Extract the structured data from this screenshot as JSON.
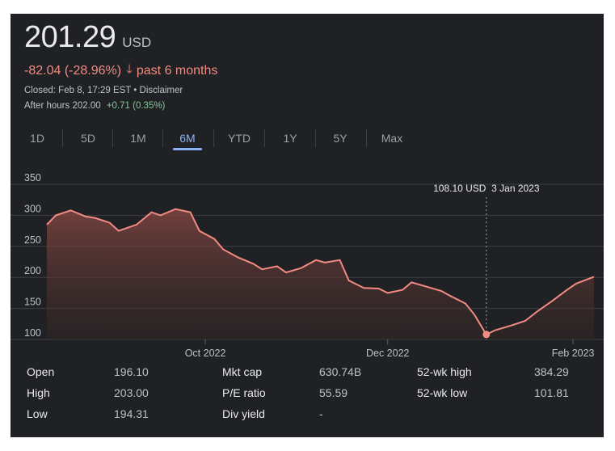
{
  "header": {
    "price": "201.29",
    "currency": "USD",
    "change": "-82.04 (-28.96%)",
    "change_period": "past 6 months",
    "closed_text": "Closed: Feb 8, 17:29 EST • Disclaimer",
    "after_hours_label": "After hours 202.00",
    "after_hours_change": "+0.71 (0.35%)"
  },
  "tabs": [
    "1D",
    "5D",
    "1M",
    "6M",
    "YTD",
    "1Y",
    "5Y",
    "Max"
  ],
  "active_tab": "6M",
  "tooltip": "108.10 USD  3 Jan 2023",
  "chart_data": {
    "type": "area",
    "title": "",
    "xlabel": "",
    "ylabel": "",
    "ylim": [
      100,
      350
    ],
    "yticks": [
      100,
      150,
      200,
      250,
      300,
      350
    ],
    "xticks": [
      "Oct 2022",
      "Dec 2022",
      "Feb 2023"
    ],
    "grid": true,
    "line_color": "#f28b82",
    "series": [
      {
        "name": "",
        "x": [
          "2022-08-09",
          "2022-08-12",
          "2022-08-17",
          "2022-08-22",
          "2022-08-25",
          "2022-08-30",
          "2022-09-02",
          "2022-09-08",
          "2022-09-13",
          "2022-09-16",
          "2022-09-21",
          "2022-09-26",
          "2022-09-29",
          "2022-10-04",
          "2022-10-07",
          "2022-10-12",
          "2022-10-17",
          "2022-10-20",
          "2022-10-25",
          "2022-10-28",
          "2022-11-02",
          "2022-11-07",
          "2022-11-10",
          "2022-11-15",
          "2022-11-18",
          "2022-11-23",
          "2022-11-28",
          "2022-12-01",
          "2022-12-06",
          "2022-12-09",
          "2022-12-14",
          "2022-12-19",
          "2022-12-22",
          "2022-12-27",
          "2022-12-30",
          "2023-01-03",
          "2023-01-06",
          "2023-01-11",
          "2023-01-16",
          "2023-01-20",
          "2023-01-25",
          "2023-01-30",
          "2023-02-02",
          "2023-02-08"
        ],
        "values": [
          285,
          300,
          308,
          298,
          296,
          288,
          275,
          285,
          305,
          300,
          310,
          305,
          275,
          262,
          245,
          232,
          222,
          213,
          218,
          208,
          215,
          228,
          224,
          228,
          195,
          183,
          182,
          175,
          180,
          192,
          185,
          178,
          170,
          158,
          140,
          108,
          115,
          122,
          130,
          145,
          162,
          180,
          190,
          201
        ]
      }
    ],
    "highlight": {
      "x": "2023-01-03",
      "value": 108.1
    }
  },
  "stats": {
    "rows": [
      [
        {
          "label": "Open",
          "value": "196.10"
        },
        {
          "label": "Mkt cap",
          "value": "630.74B"
        },
        {
          "label": "52-wk high",
          "value": "384.29"
        }
      ],
      [
        {
          "label": "High",
          "value": "203.00"
        },
        {
          "label": "P/E ratio",
          "value": "55.59"
        },
        {
          "label": "52-wk low",
          "value": "101.81"
        }
      ],
      [
        {
          "label": "Low",
          "value": "194.31"
        },
        {
          "label": "Div yield",
          "value": "-"
        }
      ]
    ]
  }
}
